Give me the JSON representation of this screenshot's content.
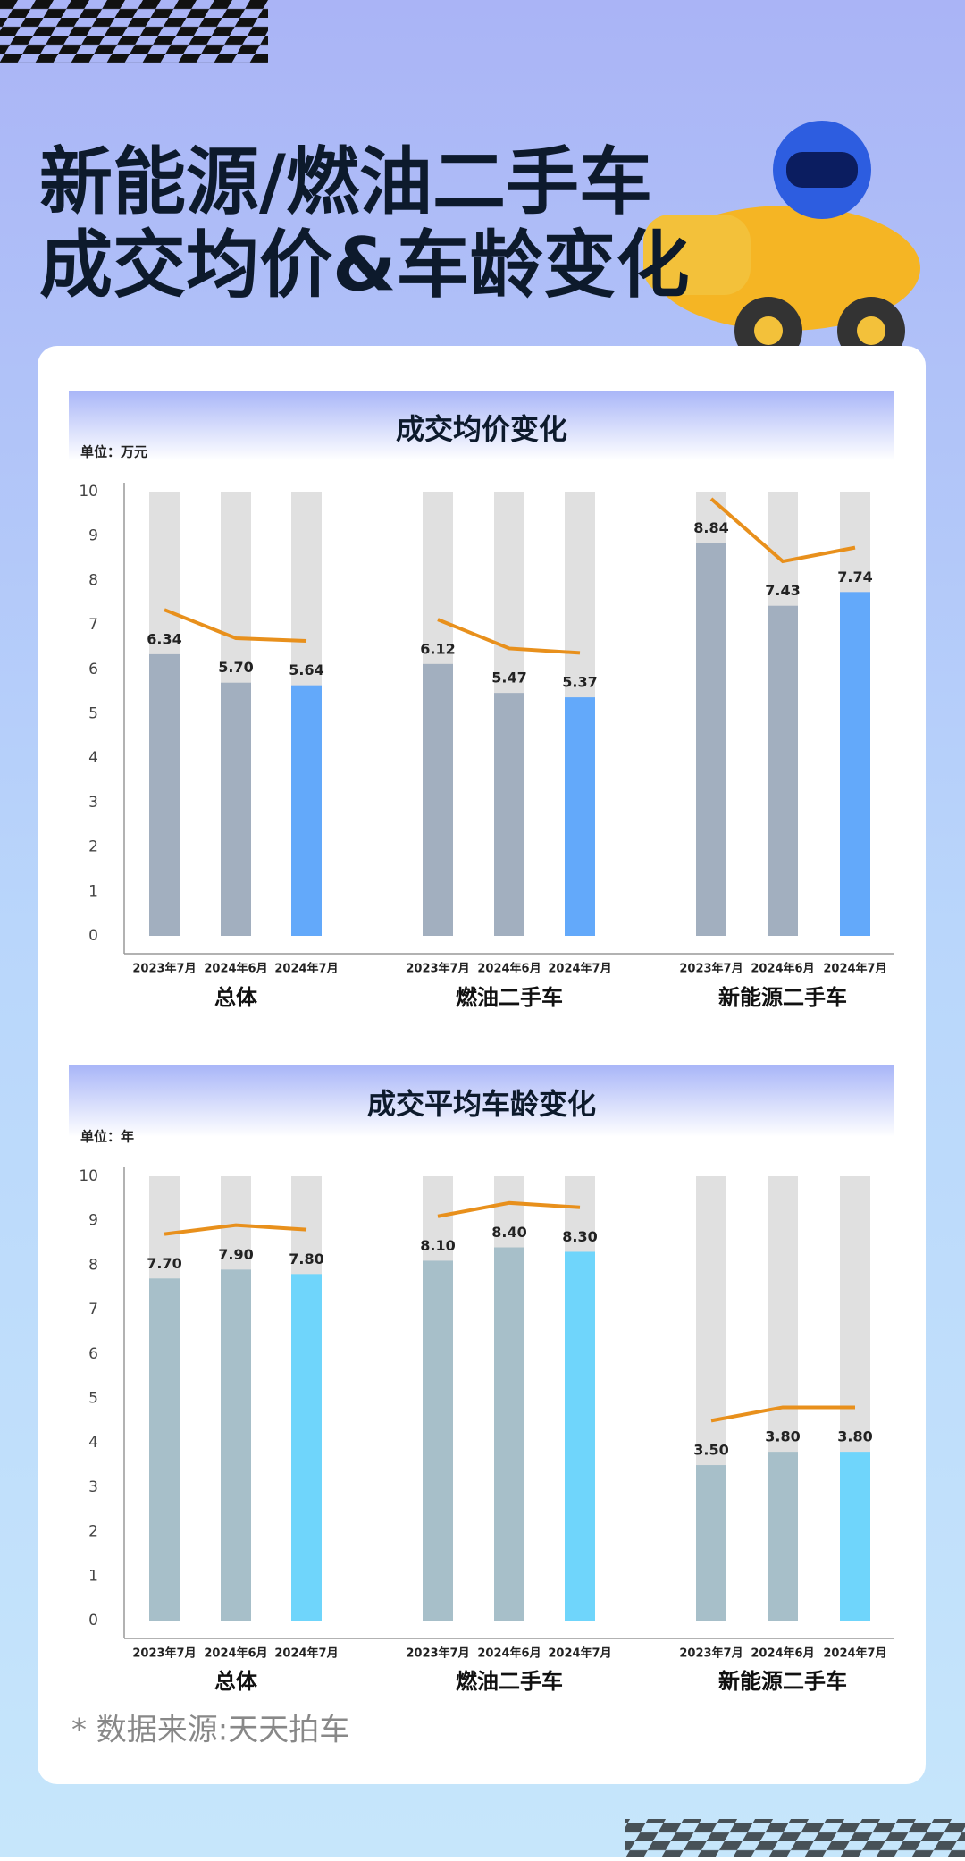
{
  "header": {
    "title": [
      "新能源/燃油二手车",
      "成交均价&车龄变化"
    ]
  },
  "chart_data": [
    {
      "type": "bar",
      "title": "成交均价变化",
      "unit": "单位：万元",
      "groups": [
        "总体",
        "燃油二手车",
        "新能源二手车"
      ],
      "categories": [
        "2023年7月",
        "2024年6月",
        "2024年7月",
        "2023年7月",
        "2024年6月",
        "2024年7月",
        "2023年7月",
        "2024年6月",
        "2024年7月"
      ],
      "values": [
        6.34,
        5.7,
        5.64,
        6.12,
        5.47,
        5.37,
        8.84,
        7.43,
        7.74
      ],
      "value_labels": [
        "6.34",
        "5.70",
        "5.64",
        "6.12",
        "5.47",
        "5.37",
        "8.84",
        "7.43",
        "7.74"
      ],
      "ylim": [
        0,
        10
      ],
      "yticks": [
        0,
        1,
        2,
        3,
        4,
        5,
        6,
        7,
        8,
        9,
        10
      ],
      "color": "#a2afbf",
      "highlight_color": "#63a9fa",
      "track_color": "#e0e0e0",
      "line_color": "#e8901c"
    },
    {
      "type": "bar",
      "title": "成交平均车龄变化",
      "unit": "单位：年",
      "groups": [
        "总体",
        "燃油二手车",
        "新能源二手车"
      ],
      "categories": [
        "2023年7月",
        "2024年6月",
        "2024年7月",
        "2023年7月",
        "2024年6月",
        "2024年7月",
        "2023年7月",
        "2024年6月",
        "2024年7月"
      ],
      "values": [
        7.7,
        7.9,
        7.8,
        8.1,
        8.4,
        8.3,
        3.5,
        3.8,
        3.8
      ],
      "value_labels": [
        "7.70",
        "7.90",
        "7.80",
        "8.10",
        "8.40",
        "8.30",
        "3.50",
        "3.80",
        "3.80"
      ],
      "ylim": [
        0,
        10
      ],
      "yticks": [
        0,
        1,
        2,
        3,
        4,
        5,
        6,
        7,
        8,
        9,
        10
      ],
      "color": "#a7bfc9",
      "highlight_color": "#6fd5fb",
      "track_color": "#e0e0e0",
      "line_color": "#e8901c"
    }
  ],
  "footer": {
    "source": "* 数据来源:天天拍车"
  }
}
